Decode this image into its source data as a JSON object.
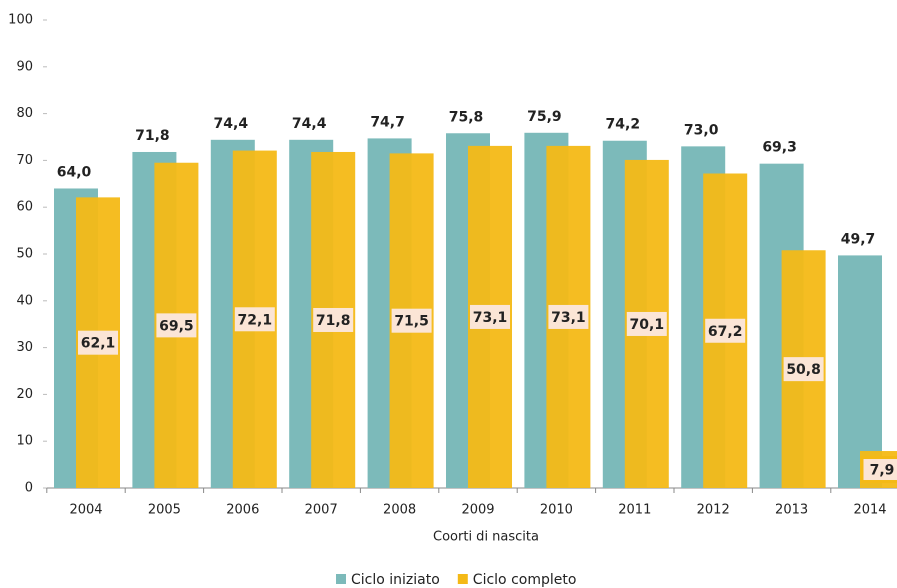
{
  "chart_data": {
    "type": "bar",
    "x_label": "Coorti di nascita",
    "categories": [
      "2004",
      "2005",
      "2006",
      "2007",
      "2008",
      "2009",
      "2010",
      "2011",
      "2012",
      "2013",
      "2014"
    ],
    "series": [
      {
        "name": "Ciclo iniziato",
        "color": "#7cbaba",
        "values": [
          64.0,
          71.8,
          74.4,
          74.4,
          74.7,
          75.8,
          75.9,
          74.2,
          73.0,
          69.3,
          49.7
        ],
        "value_labels": [
          "64,0",
          "71,8",
          "74,4",
          "74,4",
          "74,7",
          "75,8",
          "75,9",
          "74,2",
          "73,0",
          "69,3",
          "49,7"
        ]
      },
      {
        "name": "Ciclo completo",
        "color": "#f4b916",
        "values": [
          62.1,
          69.5,
          72.1,
          71.8,
          71.5,
          73.1,
          73.1,
          70.1,
          67.2,
          50.8,
          7.9
        ],
        "value_labels": [
          "62,1",
          "69,5",
          "72,1",
          "71,8",
          "71,5",
          "73,1",
          "73,1",
          "70,1",
          "67,2",
          "50,8",
          "7,9"
        ]
      }
    ],
    "ylim": [
      0,
      100
    ],
    "yticks": [
      0,
      10,
      20,
      30,
      40,
      50,
      60,
      70,
      80,
      90,
      100
    ],
    "legend": "bottom"
  }
}
